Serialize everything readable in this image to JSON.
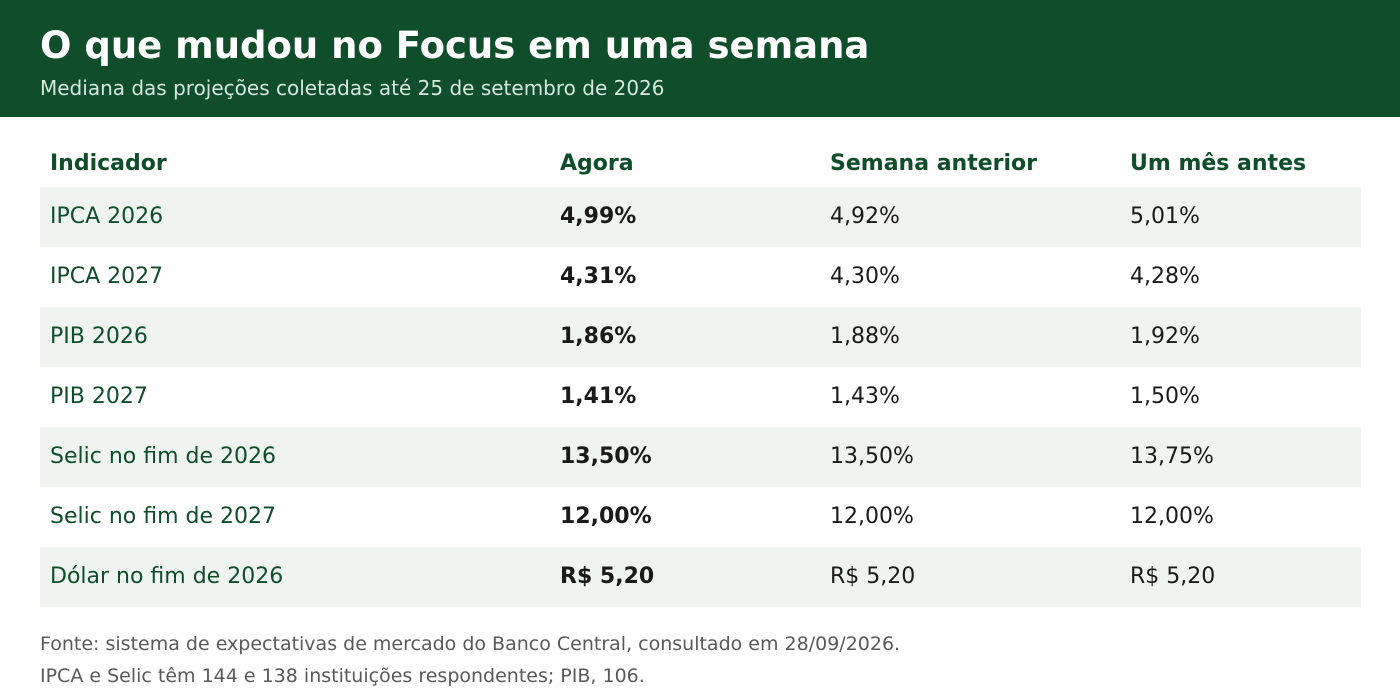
{
  "header": {
    "title": "O que mudou no Focus em uma semana",
    "subtitle": "Mediana das projeções coletadas até 25 de setembro de 2026"
  },
  "colors": {
    "header_bg": "#0f4d2b",
    "accent_text": "#0f4d2b",
    "row_shade": "#eff4f0"
  },
  "chart_data": {
    "type": "table",
    "title": "O que mudou no Focus em uma semana",
    "subtitle": "Mediana das projeções coletadas até 25 de setembro de 2026",
    "columns": [
      "Indicador",
      "Agora",
      "Semana anterior",
      "Um mês antes"
    ],
    "rows": [
      [
        "IPCA 2026",
        "4,99%",
        "4,92%",
        "5,01%"
      ],
      [
        "IPCA 2027",
        "4,31%",
        "4,30%",
        "4,28%"
      ],
      [
        "PIB 2026",
        "1,86%",
        "1,88%",
        "1,92%"
      ],
      [
        "PIB 2027",
        "1,41%",
        "1,43%",
        "1,50%"
      ],
      [
        "Selic no fim de 2026",
        "13,50%",
        "13,50%",
        "13,75%"
      ],
      [
        "Selic no fim de 2027",
        "12,00%",
        "12,00%",
        "12,00%"
      ],
      [
        "Dólar no fim de 2026",
        "R$ 5,20",
        "R$ 5,20",
        "R$ 5,20"
      ]
    ]
  },
  "footer": {
    "source": "Fonte: sistema de expectativas de mercado do Banco Central, consultado em 28/09/2026.",
    "note": "IPCA e Selic têm 144 e 138 instituições respondentes; PIB, 106."
  }
}
